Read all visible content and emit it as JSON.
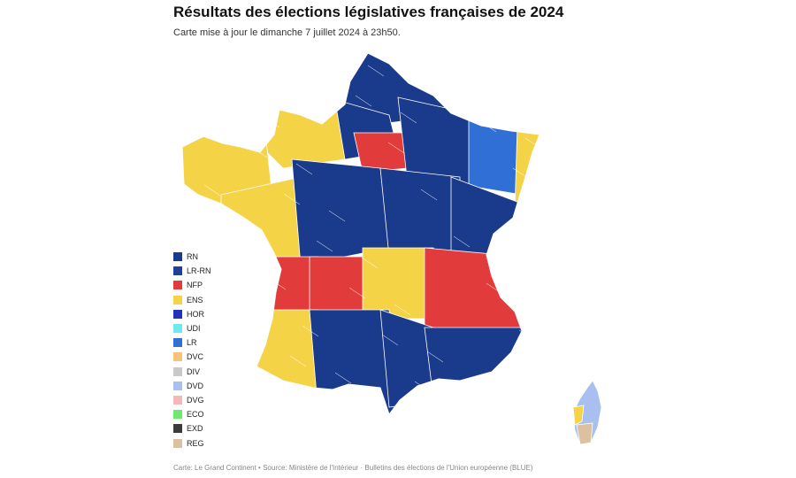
{
  "header": {
    "title": "Résultats des élections législatives françaises de 2024",
    "subtitle": "Carte mise à jour le dimanche 7 juillet 2024 à 23h50."
  },
  "legend": {
    "placement": "bottom-left",
    "items": [
      {
        "code": "RN",
        "label": "RN",
        "color": "#1a3a8c"
      },
      {
        "code": "LR-RN",
        "label": "LR-RN",
        "color": "#1f3f99"
      },
      {
        "code": "NFP",
        "label": "NFP",
        "color": "#e23b3b"
      },
      {
        "code": "ENS",
        "label": "ENS",
        "color": "#f5d347"
      },
      {
        "code": "HOR",
        "label": "HOR",
        "color": "#2133b8"
      },
      {
        "code": "UDI",
        "label": "UDI",
        "color": "#6ee9f2"
      },
      {
        "code": "LR",
        "label": "LR",
        "color": "#2f6fd6"
      },
      {
        "code": "DVC",
        "label": "DVC",
        "color": "#f7c27a"
      },
      {
        "code": "DIV",
        "label": "DIV",
        "color": "#c9c9c9"
      },
      {
        "code": "DVD",
        "label": "DVD",
        "color": "#a9bff0"
      },
      {
        "code": "DVG",
        "label": "DVG",
        "color": "#f4b8b8"
      },
      {
        "code": "ECO",
        "label": "ECO",
        "color": "#6ee86e"
      },
      {
        "code": "EXD",
        "label": "EXD",
        "color": "#3b3b3b"
      },
      {
        "code": "REG",
        "label": "REG",
        "color": "#dcc0a0"
      }
    ]
  },
  "map": {
    "regions": [
      {
        "name": "Nord",
        "party": "RN"
      },
      {
        "name": "Picardie",
        "party": "RN"
      },
      {
        "name": "Normandie",
        "party": "ENS"
      },
      {
        "name": "Bretagne",
        "party": "ENS"
      },
      {
        "name": "Ile-de-France",
        "party": "NFP"
      },
      {
        "name": "Champagne",
        "party": "RN"
      },
      {
        "name": "Lorraine",
        "party": "LR"
      },
      {
        "name": "Alsace",
        "party": "ENS"
      },
      {
        "name": "Pays de la Loire",
        "party": "ENS"
      },
      {
        "name": "Centre",
        "party": "RN"
      },
      {
        "name": "Bourgogne",
        "party": "RN"
      },
      {
        "name": "Franche-Comte",
        "party": "RN"
      },
      {
        "name": "Poitou",
        "party": "NFP"
      },
      {
        "name": "Limousin",
        "party": "NFP"
      },
      {
        "name": "Auvergne",
        "party": "ENS"
      },
      {
        "name": "Rhone-Alpes",
        "party": "NFP"
      },
      {
        "name": "Aquitaine",
        "party": "ENS"
      },
      {
        "name": "Midi-Pyrenees",
        "party": "RN"
      },
      {
        "name": "Languedoc",
        "party": "RN"
      },
      {
        "name": "Provence",
        "party": "RN"
      },
      {
        "name": "Corse",
        "party": "DVD"
      }
    ]
  },
  "footer": {
    "source": "Carte: Le Grand Continent • Source: Ministère de l'Intérieur · Bulletins des élections de l'Union européenne (BLUE)"
  }
}
